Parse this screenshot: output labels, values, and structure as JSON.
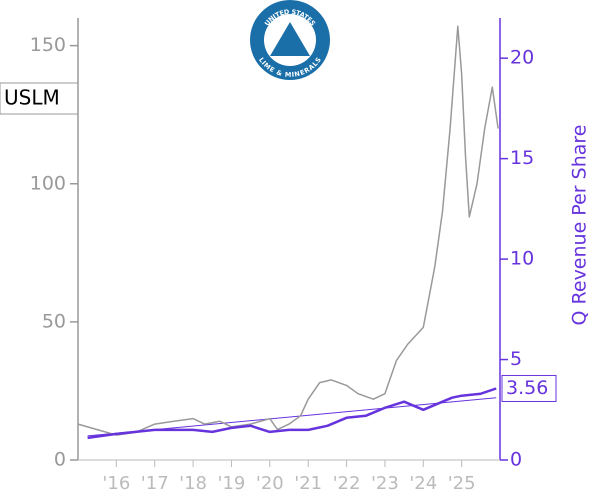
{
  "chart_data": {
    "type": "line",
    "ticker": "USLM",
    "logo": {
      "top": "UNITED STATES",
      "bottom": "LIME & MINERALS"
    },
    "y2_label": "Q Revenue Per Share",
    "xlim": [
      2015,
      2026
    ],
    "xticks": [
      {
        "value": 2016,
        "label": "'16"
      },
      {
        "value": 2017,
        "label": "'17"
      },
      {
        "value": 2018,
        "label": "'18"
      },
      {
        "value": 2019,
        "label": "'19"
      },
      {
        "value": 2020,
        "label": "'20"
      },
      {
        "value": 2021,
        "label": "'21"
      },
      {
        "value": 2022,
        "label": "'22"
      },
      {
        "value": 2023,
        "label": "'23"
      },
      {
        "value": 2024,
        "label": "'24"
      },
      {
        "value": 2025,
        "label": "'25"
      }
    ],
    "ylim": [
      0,
      160
    ],
    "yticks": [
      0,
      50,
      100,
      150
    ],
    "y2lim": [
      0,
      22
    ],
    "y2ticks": [
      0,
      5,
      10,
      15,
      20
    ],
    "series": [
      {
        "color": "#999999",
        "axis": "y",
        "x": [
          2015.0,
          2015.5,
          2016.0,
          2016.5,
          2017.0,
          2017.5,
          2018.0,
          2018.3,
          2018.7,
          2019.0,
          2019.5,
          2020.0,
          2020.2,
          2020.5,
          2020.8,
          2021.0,
          2021.3,
          2021.6,
          2022.0,
          2022.3,
          2022.7,
          2023.0,
          2023.3,
          2023.6,
          2024.0,
          2024.3,
          2024.5,
          2024.7,
          2024.9,
          2025.0,
          2025.1,
          2025.2,
          2025.4,
          2025.6,
          2025.8,
          2025.95
        ],
        "values": [
          13,
          11,
          9,
          10,
          13,
          14,
          15,
          13,
          14,
          12,
          13,
          15,
          11,
          13,
          16,
          22,
          28,
          29,
          27,
          24,
          22,
          24,
          36,
          42,
          48,
          70,
          90,
          120,
          157,
          140,
          110,
          88,
          100,
          120,
          135,
          120
        ]
      },
      {
        "color": "#6633dd",
        "axis": "y2",
        "x": [
          2015.25,
          2016.0,
          2016.5,
          2017.0,
          2017.5,
          2018.0,
          2018.5,
          2019.0,
          2019.5,
          2020.0,
          2020.5,
          2021.0,
          2021.5,
          2022.0,
          2022.5,
          2023.0,
          2023.5,
          2024.0,
          2024.5,
          2024.75,
          2025.0,
          2025.5,
          2025.9
        ],
        "values": [
          1.1,
          1.3,
          1.4,
          1.5,
          1.5,
          1.5,
          1.4,
          1.6,
          1.7,
          1.4,
          1.5,
          1.5,
          1.7,
          2.1,
          2.2,
          2.6,
          2.9,
          2.5,
          2.9,
          3.1,
          3.2,
          3.3,
          3.56
        ]
      }
    ],
    "trend": {
      "color": "#6633dd",
      "axis": "y2",
      "x": [
        2015.25,
        2025.9
      ],
      "values": [
        1.2,
        3.1
      ]
    }
  }
}
